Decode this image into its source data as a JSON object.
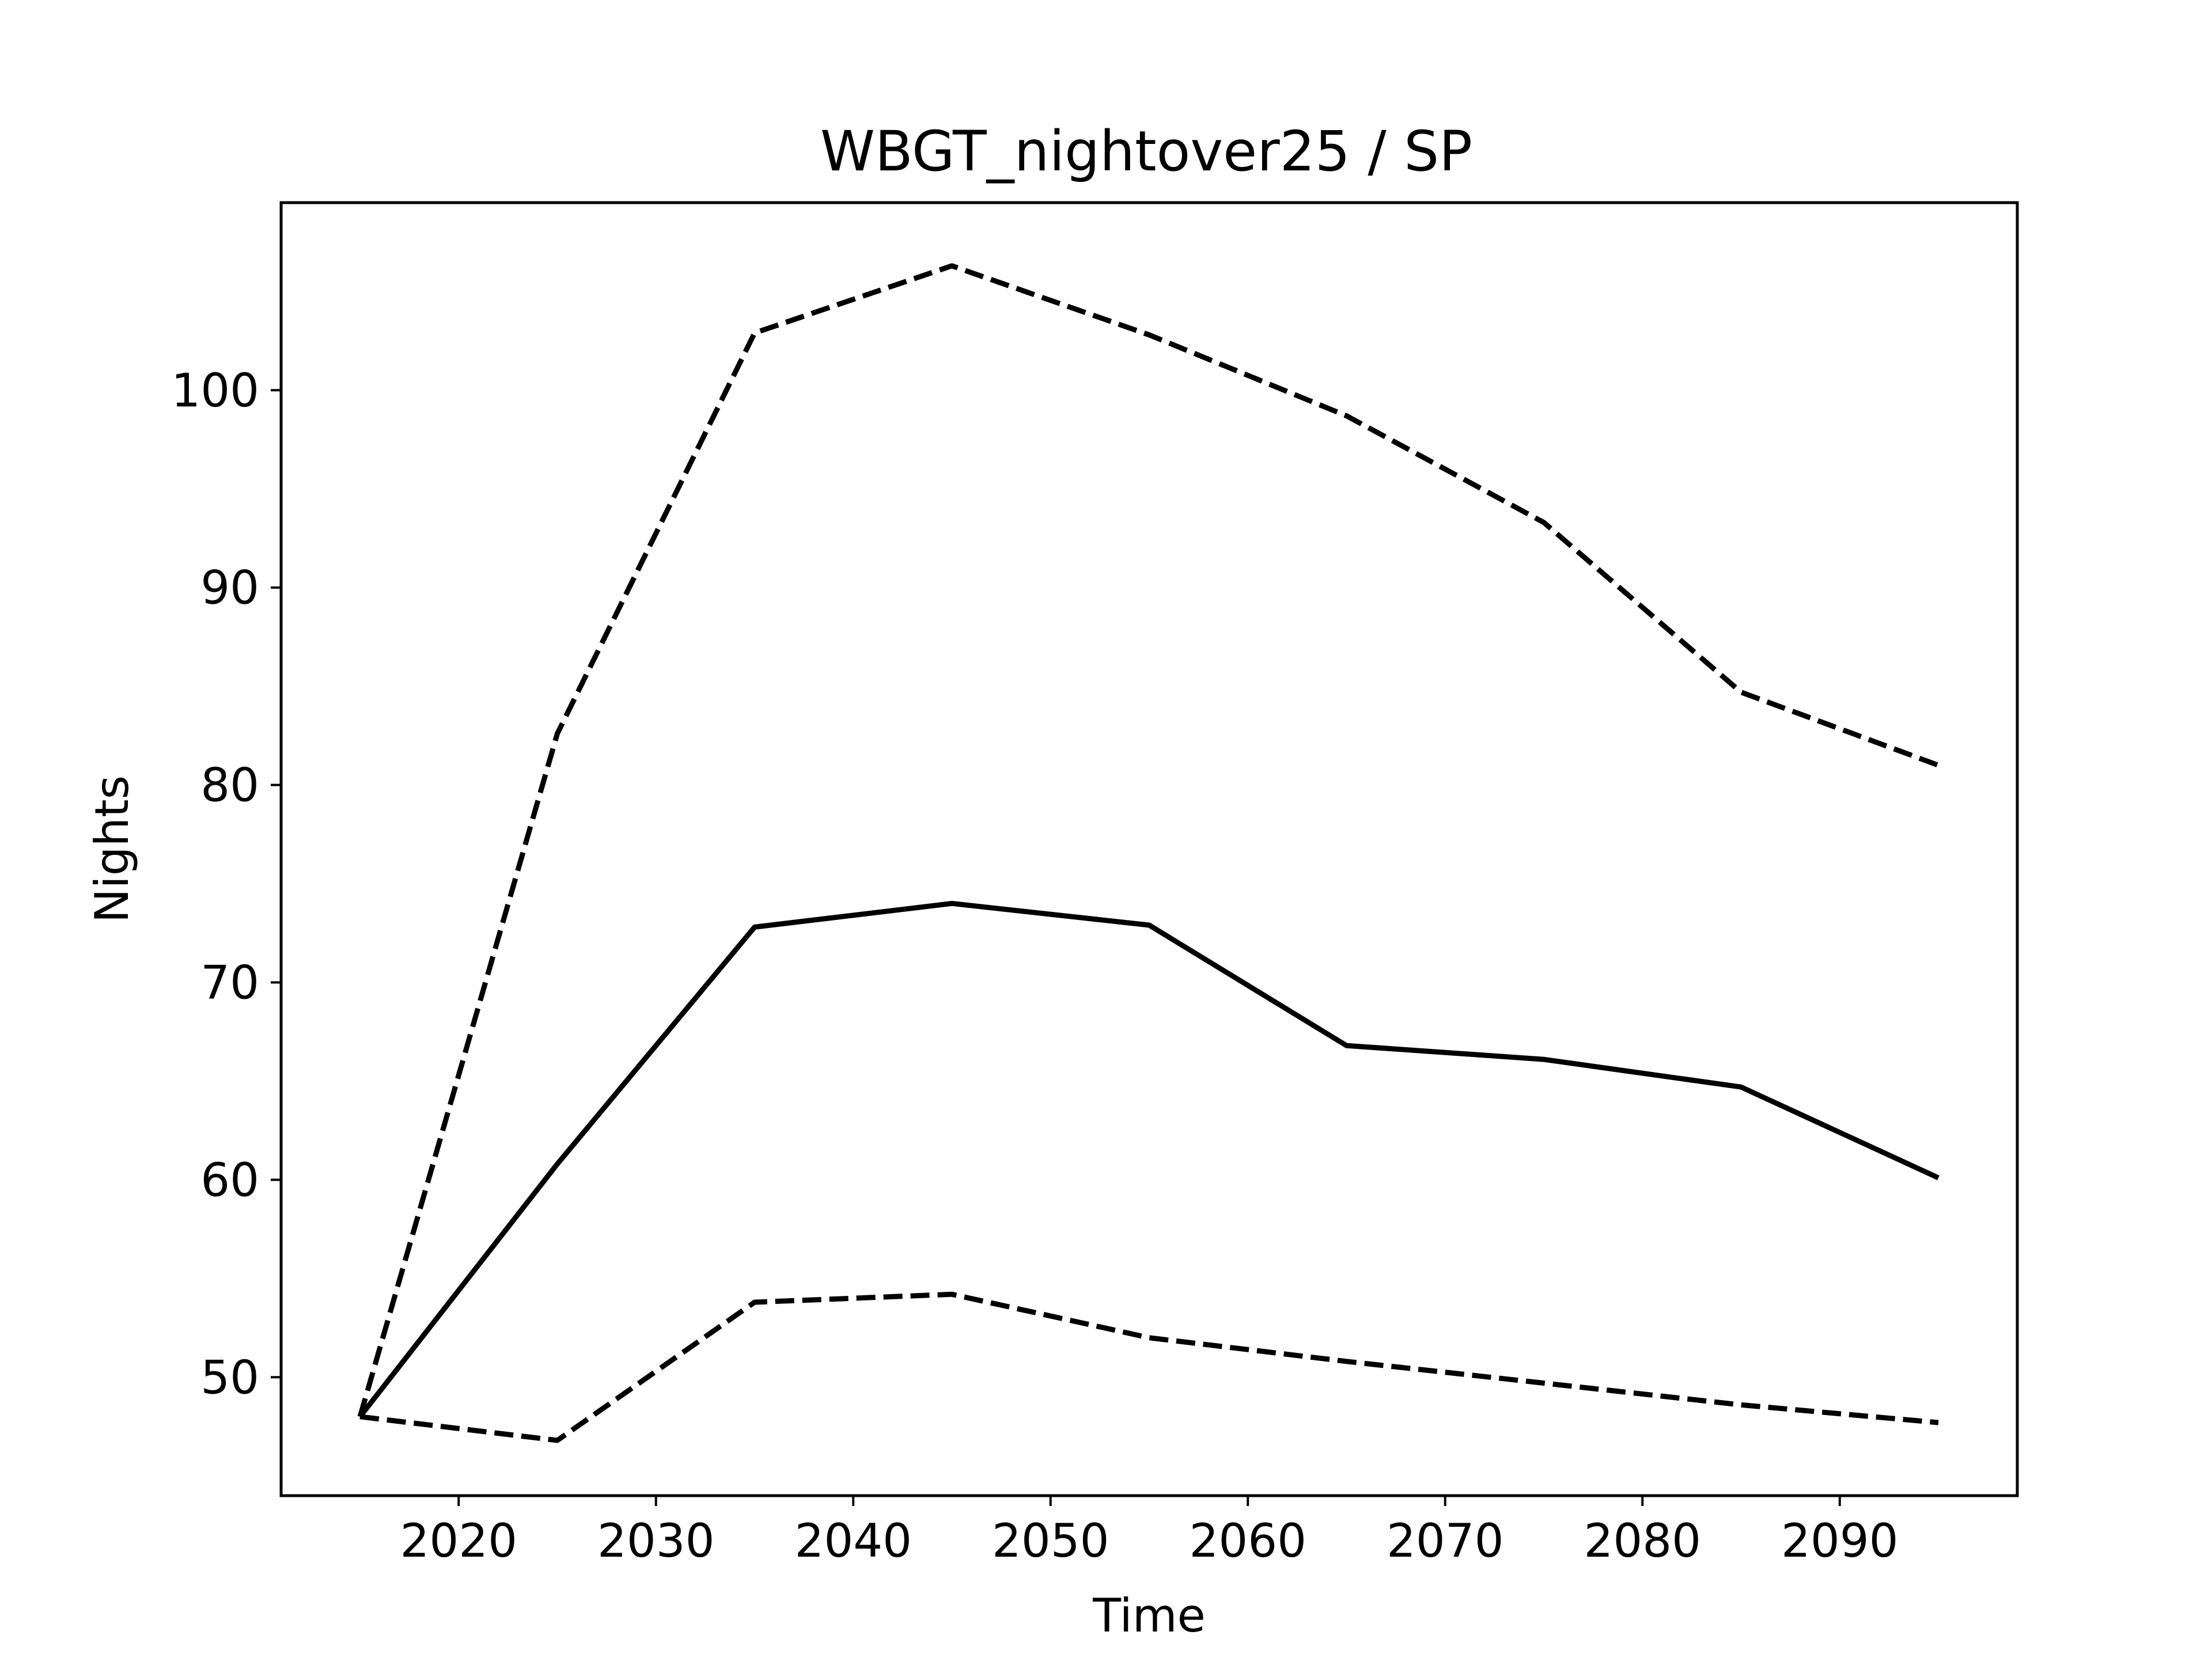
{
  "chart_data": {
    "type": "line",
    "title": "WBGT_nightover25 / SP",
    "xlabel": "Time",
    "ylabel": "Nights",
    "xlim": [
      2011,
      2099
    ],
    "ylim": [
      44,
      109.5
    ],
    "xticks": [
      2020,
      2030,
      2040,
      2050,
      2060,
      2070,
      2080,
      2090
    ],
    "yticks": [
      50,
      60,
      70,
      80,
      90,
      100
    ],
    "grid": false,
    "legend": "none",
    "x": [
      2015,
      2025,
      2035,
      2045,
      2055,
      2065,
      2075,
      2085,
      2095
    ],
    "series": [
      {
        "style": "solid",
        "color": "#000000",
        "values": [
          48.0,
          60.8,
          72.8,
          74.0,
          72.9,
          66.8,
          66.1,
          64.7,
          60.1
        ]
      },
      {
        "style": "dashed",
        "color": "#000000",
        "values": [
          48.0,
          82.6,
          102.9,
          106.3,
          102.8,
          98.7,
          93.3,
          84.7,
          81.0
        ]
      },
      {
        "style": "dashed",
        "color": "#000000",
        "values": [
          48.0,
          46.8,
          53.8,
          54.2,
          52.0,
          50.8,
          49.7,
          48.6,
          47.7
        ]
      }
    ]
  }
}
